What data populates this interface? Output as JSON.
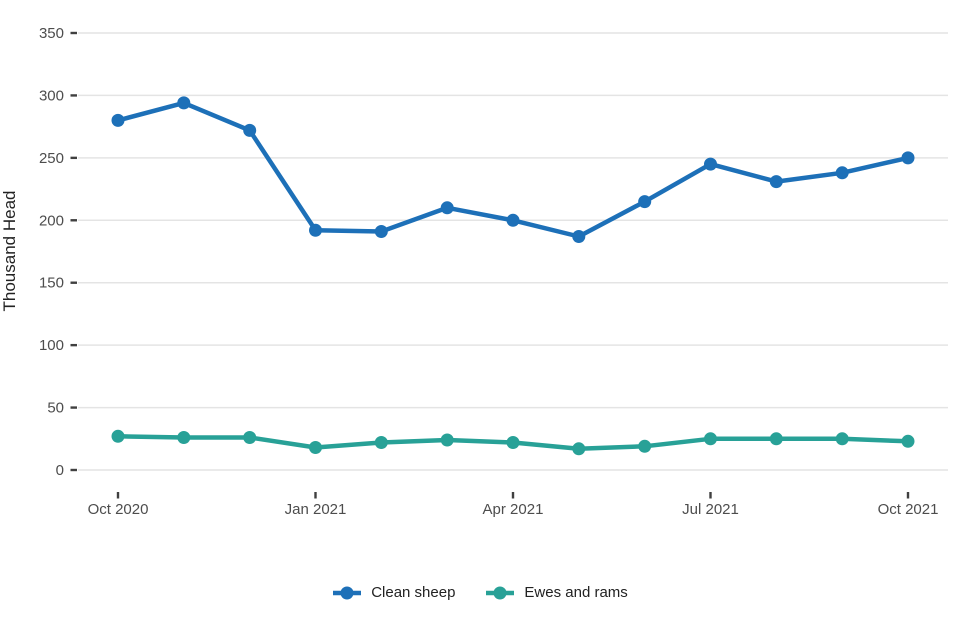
{
  "chart_data": {
    "type": "line",
    "title": "",
    "xlabel": "",
    "ylabel": "Thousand Head",
    "x": [
      "Oct 2020",
      "Nov 2020",
      "Dec 2020",
      "Jan 2021",
      "Feb 2021",
      "Mar 2021",
      "Apr 2021",
      "May 2021",
      "Jun 2021",
      "Jul 2021",
      "Aug 2021",
      "Sep 2021",
      "Oct 2021"
    ],
    "x_tick_indices": [
      0,
      3,
      6,
      9,
      12
    ],
    "x_tick_labels": [
      "Oct 2020",
      "Jan 2021",
      "Apr 2021",
      "Jul 2021",
      "Oct 2021"
    ],
    "y_ticks": [
      0,
      50,
      100,
      150,
      200,
      250,
      300,
      350
    ],
    "ylim": [
      0,
      350
    ],
    "grid": "horizontal",
    "legend_position": "bottom",
    "series": [
      {
        "name": "Clean sheep",
        "key": "clean-sheep",
        "color": "#1d70b8",
        "values": [
          280,
          294,
          272,
          192,
          191,
          210,
          200,
          187,
          215,
          245,
          231,
          238,
          250
        ]
      },
      {
        "name": "Ewes and rams",
        "key": "ewes-and-rams",
        "color": "#28a197",
        "values": [
          27,
          26,
          26,
          18,
          22,
          24,
          22,
          17,
          19,
          25,
          25,
          25,
          23
        ]
      }
    ]
  },
  "colors": {
    "gridline": "#e4e4e4",
    "tick": "#404040",
    "tick_label": "#4d4d4d",
    "axis_title": "#222222",
    "background": "#ffffff"
  }
}
